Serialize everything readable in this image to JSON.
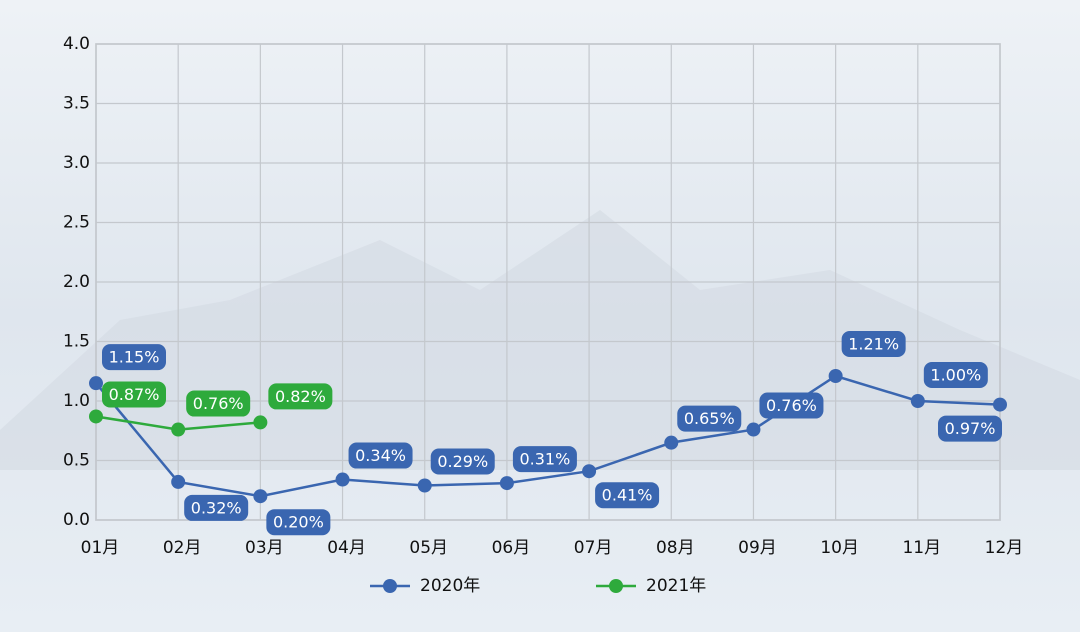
{
  "chart_data": {
    "type": "line",
    "categories": [
      "01月",
      "02月",
      "03月",
      "04月",
      "05月",
      "06月",
      "07月",
      "08月",
      "09月",
      "10月",
      "11月",
      "12月"
    ],
    "series": [
      {
        "name": "2020年",
        "color": "#3a66b0",
        "values": [
          1.15,
          0.32,
          0.2,
          0.34,
          0.29,
          0.31,
          0.41,
          0.65,
          0.76,
          1.21,
          1.0,
          0.97
        ],
        "value_labels": [
          "1.15%",
          "0.32%",
          "0.20%",
          "0.34%",
          "0.29%",
          "0.31%",
          "0.41%",
          "0.65%",
          "0.76%",
          "1.21%",
          "1.00%",
          "0.97%"
        ]
      },
      {
        "name": "2021年",
        "color": "#2eaa3c",
        "values": [
          0.87,
          0.76,
          0.82,
          null,
          null,
          null,
          null,
          null,
          null,
          null,
          null,
          null
        ],
        "value_labels": [
          "0.87%",
          "0.76%",
          "0.82%",
          null,
          null,
          null,
          null,
          null,
          null,
          null,
          null,
          null
        ]
      }
    ],
    "ylim": [
      0,
      4
    ],
    "yticks": [
      {
        "value": 0,
        "label": "0.0"
      },
      0.5,
      {
        "value": 1,
        "label": "1.0"
      },
      1.5,
      {
        "value": 2,
        "label": "2.0"
      },
      2.5,
      {
        "value": 3,
        "label": "3.0"
      },
      3.5,
      {
        "value": 4,
        "label": "4.0"
      }
    ],
    "grid": true,
    "legend": "bottom"
  }
}
